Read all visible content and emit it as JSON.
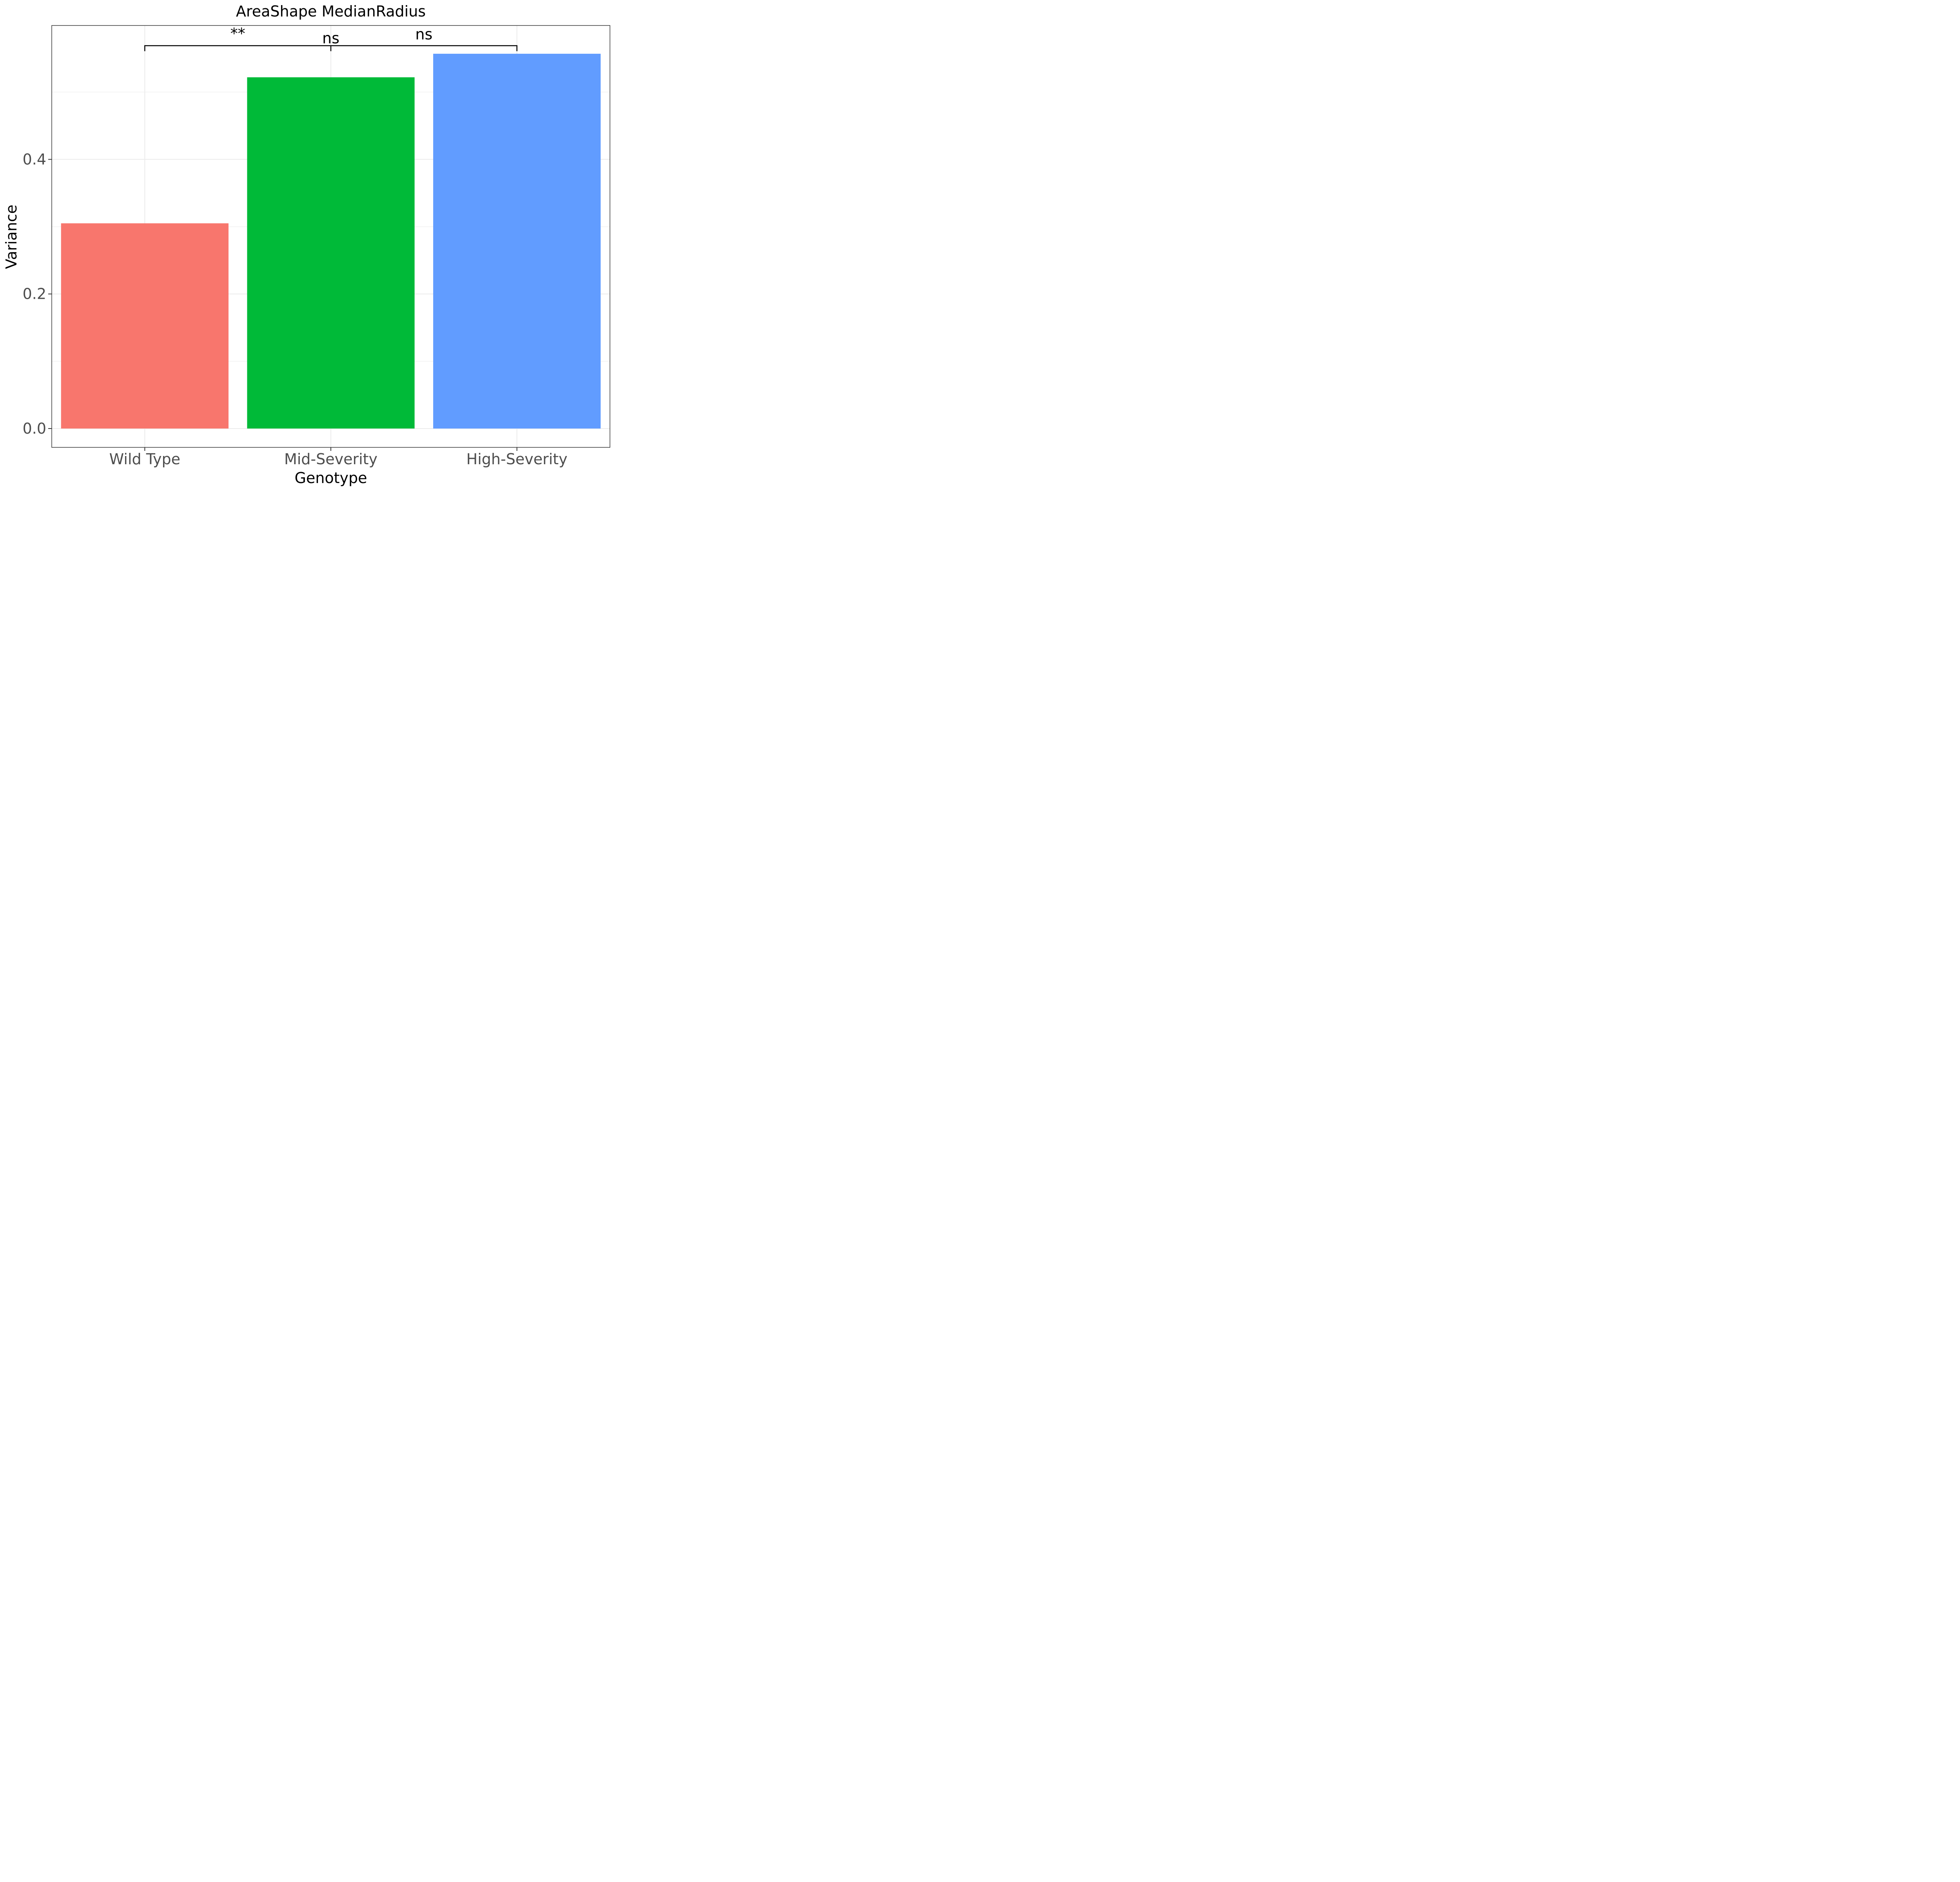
{
  "chart_data": {
    "type": "bar",
    "title": "AreaShape MedianRadius",
    "xlabel": "Genotype",
    "ylabel": "Variance",
    "categories": [
      "Wild Type",
      "Mid-Severity",
      "High-Severity"
    ],
    "values": [
      0.305,
      0.522,
      0.557
    ],
    "colors": [
      "#F8766D",
      "#00BA38",
      "#619CFF"
    ],
    "ylim": [
      -0.028,
      0.599
    ],
    "yticks": [
      0.0,
      0.2,
      0.4
    ],
    "ytick_labels": [
      "0.0",
      "0.2",
      "0.4"
    ],
    "grid": true,
    "legend": "none",
    "significance": {
      "bracket_y": 0.569,
      "bracket_from": "Wild Type",
      "bracket_to": "High-Severity",
      "bracket_mid": "Mid-Severity",
      "annotations": [
        {
          "label": "**",
          "between": [
            "Wild Type",
            "Mid-Severity"
          ]
        },
        {
          "label": "ns",
          "at": "Mid-Severity"
        },
        {
          "label": "ns",
          "between": [
            "Mid-Severity",
            "High-Severity"
          ]
        }
      ]
    }
  }
}
